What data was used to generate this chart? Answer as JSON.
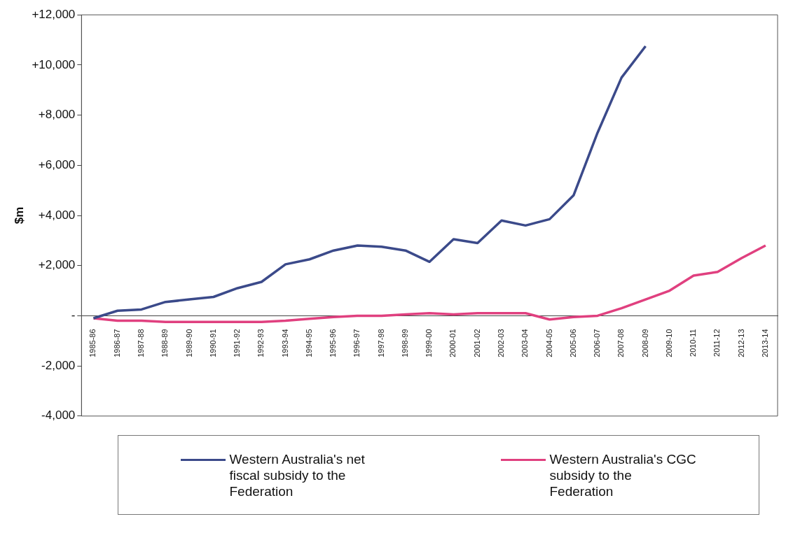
{
  "chart_data": {
    "type": "line",
    "ylabel": "$m",
    "categories": [
      "1985-86",
      "1986-87",
      "1987-88",
      "1988-89",
      "1989-90",
      "1990-91",
      "1991-92",
      "1992-93",
      "1993-94",
      "1994-95",
      "1995-96",
      "1996-97",
      "1997-98",
      "1998-99",
      "1999-00",
      "2000-01",
      "2001-02",
      "2002-03",
      "2003-04",
      "2004-05",
      "2005-06",
      "2006-07",
      "2007-08",
      "2008-09",
      "2009-10",
      "2010-11",
      "2011-12",
      "2012-13",
      "2013-14"
    ],
    "series": [
      {
        "name": "Western Australia's net fiscal subsidy to the Federation",
        "color": "#3b4a8a",
        "values": [
          -100,
          200,
          250,
          550,
          650,
          750,
          1100,
          1350,
          2050,
          2250,
          2600,
          2800,
          2750,
          2600,
          2150,
          3050,
          2900,
          3800,
          3600,
          3850,
          4800,
          7300,
          9500,
          10750,
          null,
          null,
          null,
          null,
          null
        ]
      },
      {
        "name": "Western Australia's CGC subsidy to the Federation",
        "color": "#e0407f",
        "values": [
          -100,
          -200,
          -200,
          -250,
          -250,
          -250,
          -250,
          -250,
          -200,
          -120,
          -50,
          0,
          0,
          50,
          100,
          50,
          100,
          100,
          100,
          -150,
          -50,
          0,
          300,
          650,
          1000,
          1600,
          1750,
          2300,
          2800
        ]
      }
    ],
    "ylim": [
      -4000,
      12000
    ],
    "yticks": [
      {
        "value": -4000,
        "label": "-4,000"
      },
      {
        "value": -2000,
        "label": "-2,000"
      },
      {
        "value": 0,
        "label": "-"
      },
      {
        "value": 2000,
        "label": "+2,000"
      },
      {
        "value": 4000,
        "label": "+4,000"
      },
      {
        "value": 6000,
        "label": "+6,000"
      },
      {
        "value": 8000,
        "label": "+8,000"
      },
      {
        "value": 10000,
        "label": "+10,000"
      },
      {
        "value": 12000,
        "label": "+12,000"
      }
    ],
    "grid": false,
    "legend": "bottom",
    "marker": "none",
    "line_style": "solid"
  }
}
